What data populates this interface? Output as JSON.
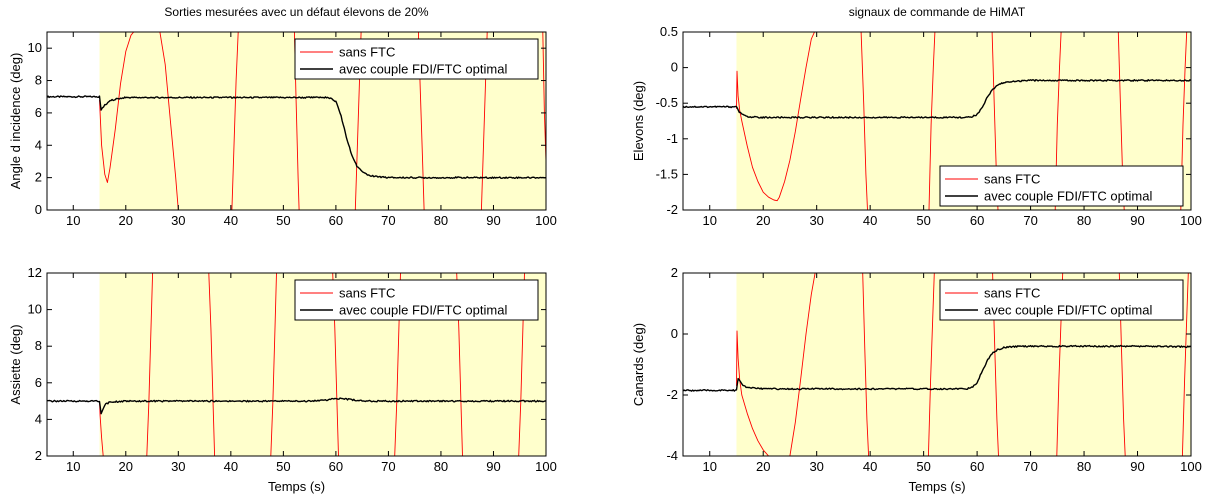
{
  "chart_data": [
    {
      "type": "line",
      "title": "Sorties mesurées avec un défaut élevons de 20%",
      "xlabel": "",
      "ylabel": "Angle d incidence (deg)",
      "xlim": [
        5,
        100
      ],
      "ylim": [
        0,
        11
      ],
      "xticks": [
        10,
        20,
        30,
        40,
        50,
        60,
        70,
        80,
        90,
        100
      ],
      "yticks": [
        0,
        2,
        4,
        6,
        8,
        10
      ],
      "fault_band": [
        15,
        100
      ],
      "legend": {
        "position": "top-right",
        "entries": [
          "sans FTC",
          "avec couple FDI/FTC optimal"
        ]
      },
      "series": [
        {
          "name": "sans FTC",
          "color": "#ff0000",
          "x": [
            15,
            15.4,
            16,
            16.5,
            17,
            18,
            19,
            20,
            21,
            21.5,
            21.8,
            26.5,
            27.5,
            28.5,
            29.5,
            30,
            40.2,
            40.6,
            41,
            41.4,
            52.1,
            52.4,
            52.8,
            53,
            63.7,
            64.1,
            64.5,
            64.8,
            75.7,
            76.1,
            76.5,
            76.8,
            87.7,
            88.1,
            88.5,
            88.8,
            99.4,
            99.7,
            100
          ],
          "y": [
            6.8,
            4.0,
            2.2,
            1.7,
            2.6,
            5.0,
            7.8,
            9.8,
            10.8,
            11,
            11,
            11,
            9.0,
            5.5,
            2.0,
            0,
            0,
            4,
            8,
            11,
            11,
            7,
            2,
            0,
            0,
            4,
            8,
            11,
            11,
            7,
            3,
            0,
            0,
            4,
            8,
            11,
            11,
            6,
            3
          ]
        },
        {
          "name": "avec couple FDI/FTC optimal",
          "color": "#000000",
          "x": [
            5,
            15,
            15.3,
            16,
            17,
            18,
            20,
            25,
            40,
            55,
            58,
            59,
            60,
            61,
            62,
            63,
            64,
            65,
            66,
            68,
            70,
            80,
            90,
            100
          ],
          "y": [
            7.0,
            7.0,
            6.2,
            6.5,
            6.75,
            6.85,
            6.95,
            6.95,
            6.95,
            6.95,
            6.95,
            6.9,
            6.7,
            5.8,
            4.5,
            3.4,
            2.7,
            2.35,
            2.15,
            2.05,
            2.0,
            2.0,
            2.0,
            2.0
          ]
        }
      ]
    },
    {
      "type": "line",
      "title": "signaux de commande de HiMAT",
      "xlabel": "",
      "ylabel": "Elevons (deg)",
      "xlim": [
        5,
        100
      ],
      "ylim": [
        -2,
        0.5
      ],
      "xticks": [
        10,
        20,
        30,
        40,
        50,
        60,
        70,
        80,
        90,
        100
      ],
      "yticks": [
        -2,
        -1.5,
        -1,
        -0.5,
        0,
        0.5
      ],
      "fault_band": [
        15,
        100
      ],
      "legend": {
        "position": "bottom-right",
        "entries": [
          "sans FTC",
          "avec couple FDI/FTC optimal"
        ]
      },
      "series": [
        {
          "name": "sans FTC",
          "color": "#ff0000",
          "x": [
            15,
            15.1,
            15.3,
            15.6,
            16,
            17,
            18,
            19,
            20,
            21,
            22,
            22.6,
            23,
            24,
            25,
            26,
            27,
            28,
            29,
            29.6,
            38.3,
            38.8,
            39.2,
            39.5,
            51,
            51.4,
            51.8,
            52.1,
            62.8,
            63.2,
            63.6,
            63.9,
            74.6,
            75,
            75.4,
            75.7,
            86.4,
            86.8,
            87.2,
            87.5,
            98.1,
            98.5,
            98.9,
            99.2
          ],
          "y": [
            -0.58,
            -0.05,
            -0.4,
            -0.6,
            -0.75,
            -1.1,
            -1.4,
            -1.6,
            -1.75,
            -1.82,
            -1.86,
            -1.87,
            -1.82,
            -1.6,
            -1.3,
            -0.9,
            -0.45,
            0.0,
            0.4,
            0.5,
            0.5,
            -0.5,
            -1.5,
            -2,
            -2,
            -0.8,
            0.0,
            0.5,
            0.5,
            -0.5,
            -1.5,
            -2,
            -2,
            -0.8,
            0.0,
            0.5,
            0.5,
            -0.5,
            -1.5,
            -2,
            -2,
            -0.8,
            0.0,
            0.5
          ]
        },
        {
          "name": "avec couple FDI/FTC optimal",
          "color": "#000000",
          "x": [
            5,
            15,
            15.3,
            16,
            17,
            20,
            30,
            40,
            50,
            55,
            58,
            59,
            60,
            61,
            62,
            63,
            64,
            65,
            66,
            68,
            70,
            80,
            90,
            100
          ],
          "y": [
            -0.55,
            -0.55,
            -0.6,
            -0.66,
            -0.69,
            -0.7,
            -0.7,
            -0.7,
            -0.7,
            -0.7,
            -0.7,
            -0.69,
            -0.66,
            -0.55,
            -0.4,
            -0.3,
            -0.24,
            -0.21,
            -0.2,
            -0.19,
            -0.18,
            -0.18,
            -0.18,
            -0.18
          ]
        }
      ]
    },
    {
      "type": "line",
      "title": "",
      "xlabel": "Temps (s)",
      "ylabel": "Assiette (deg)",
      "xlim": [
        5,
        100
      ],
      "ylim": [
        2,
        12
      ],
      "xticks": [
        10,
        20,
        30,
        40,
        50,
        60,
        70,
        80,
        90,
        100
      ],
      "yticks": [
        2,
        4,
        6,
        8,
        10,
        12
      ],
      "fault_band": [
        15,
        100
      ],
      "legend": {
        "position": "top-right",
        "entries": [
          "sans FTC",
          "avec couple FDI/FTC optimal"
        ]
      },
      "series": [
        {
          "name": "sans FTC",
          "color": "#ff0000",
          "x": [
            15,
            15.1,
            15.4,
            15.7,
            24,
            24.4,
            24.8,
            25.1,
            35.8,
            36.2,
            36.6,
            36.9,
            47.6,
            48,
            48.4,
            48.7,
            59.4,
            59.8,
            60.2,
            60.5,
            71.2,
            71.6,
            72,
            72.3,
            83,
            83.4,
            83.8,
            84.1,
            94.8,
            95.2,
            95.6,
            95.9
          ],
          "y": [
            5,
            4.2,
            3.0,
            2,
            2,
            5,
            9,
            12,
            12,
            9,
            5,
            2,
            2,
            5,
            9,
            12,
            12,
            9,
            5,
            2,
            2,
            5,
            9,
            12,
            12,
            9,
            5,
            2,
            2,
            5,
            9,
            12
          ]
        },
        {
          "name": "avec couple FDI/FTC optimal",
          "color": "#000000",
          "x": [
            5,
            15,
            15.3,
            16,
            17,
            20,
            30,
            40,
            50,
            55,
            58,
            60,
            62,
            64,
            66,
            70,
            80,
            90,
            100
          ],
          "y": [
            5.0,
            5.0,
            4.3,
            4.8,
            4.95,
            5.0,
            5.0,
            5.0,
            5.0,
            5.0,
            5.05,
            5.15,
            5.1,
            5.05,
            5.0,
            5.0,
            5.0,
            5.0,
            5.0
          ]
        }
      ]
    },
    {
      "type": "line",
      "title": "",
      "xlabel": "Temps (s)",
      "ylabel": "Canards (deg)",
      "xlim": [
        5,
        100
      ],
      "ylim": [
        -4,
        2
      ],
      "xticks": [
        10,
        20,
        30,
        40,
        50,
        60,
        70,
        80,
        90,
        100
      ],
      "yticks": [
        -4,
        -2,
        0,
        2
      ],
      "fault_band": [
        15,
        100
      ],
      "legend": {
        "position": "top-right",
        "entries": [
          "sans FTC",
          "avec couple FDI/FTC optimal"
        ]
      },
      "series": [
        {
          "name": "sans FTC",
          "color": "#ff0000",
          "x": [
            15,
            15.1,
            15.3,
            15.6,
            16,
            17,
            18,
            19,
            20,
            21,
            21.5,
            25,
            26,
            27,
            28,
            29,
            29.7,
            38.6,
            39,
            39.4,
            39.7,
            50.9,
            51.3,
            51.7,
            52,
            62.9,
            63.3,
            63.7,
            64,
            74.9,
            75.3,
            75.7,
            76,
            86.6,
            87,
            87.4,
            87.7,
            98.4,
            98.8,
            99.2,
            99.5
          ],
          "y": [
            -1.7,
            0.1,
            -0.8,
            -1.5,
            -2.0,
            -2.6,
            -3.1,
            -3.5,
            -3.8,
            -4,
            -4,
            -4,
            -2.9,
            -1.5,
            0.0,
            1.3,
            2,
            2,
            -0.5,
            -2.8,
            -4,
            -4,
            -1.5,
            0.5,
            2,
            2,
            -0.5,
            -2.8,
            -4,
            -4,
            -1.5,
            0.5,
            2,
            2,
            -0.5,
            -2.8,
            -4,
            -4,
            -1.5,
            0.5,
            2
          ]
        },
        {
          "name": "avec couple FDI/FTC optimal",
          "color": "#000000",
          "x": [
            5,
            15,
            15.3,
            16,
            17,
            20,
            30,
            40,
            50,
            55,
            58,
            59,
            60,
            61,
            62,
            63,
            64,
            65,
            66,
            68,
            70,
            80,
            90,
            100
          ],
          "y": [
            -1.85,
            -1.85,
            -1.45,
            -1.65,
            -1.75,
            -1.8,
            -1.8,
            -1.8,
            -1.8,
            -1.8,
            -1.8,
            -1.75,
            -1.6,
            -1.2,
            -0.85,
            -0.6,
            -0.5,
            -0.45,
            -0.42,
            -0.4,
            -0.4,
            -0.4,
            -0.4,
            -0.42
          ]
        }
      ]
    }
  ]
}
